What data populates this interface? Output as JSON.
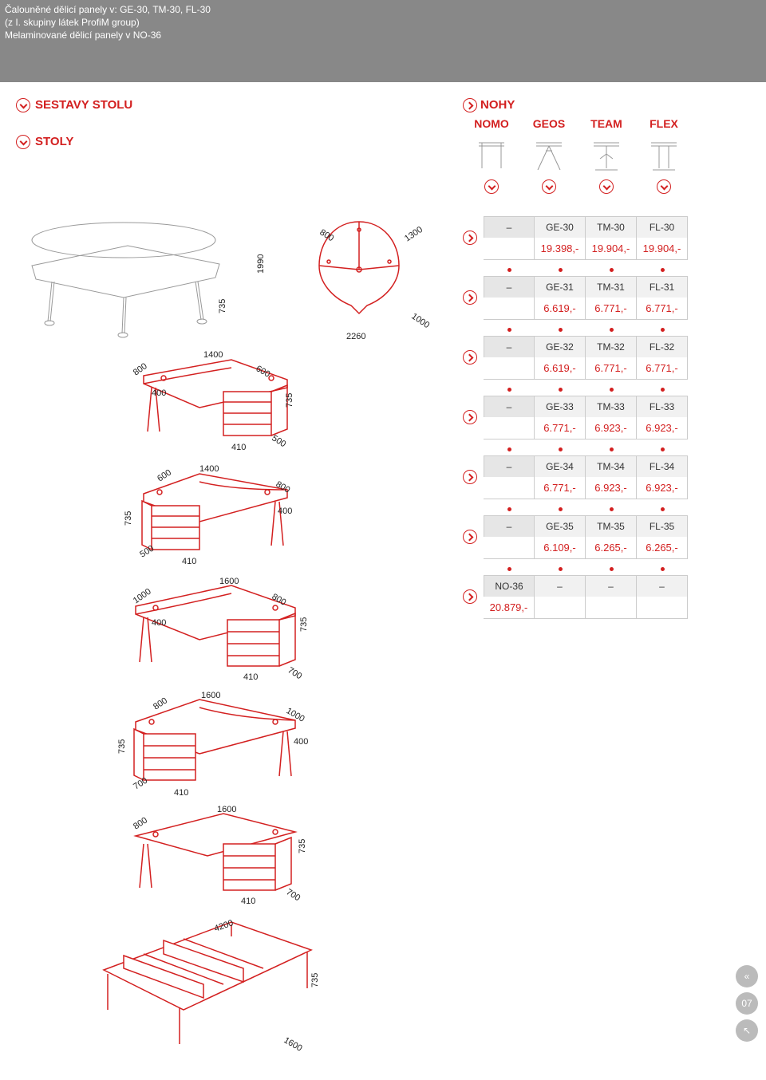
{
  "header": {
    "line1": "Čalouněné dělicí panely v: GE-30, TM-30, FL-30",
    "line2": "(z I. skupiny látek ProfiM group)",
    "line3": "Melaminované dělicí panely v NO-36"
  },
  "sections": {
    "sestavy": "SESTAVY STOLU",
    "stoly": "STOLY",
    "nohy": "NOHY"
  },
  "nohy_cols": [
    "NOMO",
    "GEOS",
    "TEAM",
    "FLEX"
  ],
  "colors": {
    "accent": "#d32020",
    "grey": "#888888",
    "line": "#cccccc"
  },
  "page_number": "07",
  "diagrams": [
    {
      "dims": {
        "w1": "2260",
        "h1": "1990",
        "h2": "735",
        "d1": "1300",
        "d2": "1000",
        "d3": "800"
      }
    },
    {
      "dims": {
        "w": "1400",
        "h": "735",
        "d": "800",
        "d2": "600",
        "d3": "400",
        "d4": "500",
        "cab": "410"
      }
    },
    {
      "dims": {
        "w": "1400",
        "h": "735",
        "d": "600",
        "d2": "800",
        "d3": "400",
        "d4": "500",
        "cab": "410"
      }
    },
    {
      "dims": {
        "w": "1600",
        "h": "735",
        "d": "1000",
        "d2": "800",
        "d3": "400",
        "d4": "700",
        "cab": "410"
      }
    },
    {
      "dims": {
        "w": "1600",
        "h": "735",
        "d": "800",
        "d2": "1000",
        "d3": "400",
        "d4": "700",
        "cab": "410"
      }
    },
    {
      "dims": {
        "w": "1600",
        "h": "735",
        "d": "800",
        "d4": "700",
        "cab": "410"
      }
    },
    {
      "dims": {
        "w": "4200",
        "h": "735",
        "d": "1600"
      }
    }
  ],
  "products": [
    {
      "codes": [
        "–",
        "GE-30",
        "TM-30",
        "FL-30"
      ],
      "prices": [
        "",
        "19.398,-",
        "19.904,-",
        "19.904,-"
      ]
    },
    {
      "codes": [
        "–",
        "GE-31",
        "TM-31",
        "FL-31"
      ],
      "prices": [
        "",
        "6.619,-",
        "6.771,-",
        "6.771,-"
      ]
    },
    {
      "codes": [
        "–",
        "GE-32",
        "TM-32",
        "FL-32"
      ],
      "prices": [
        "",
        "6.619,-",
        "6.771,-",
        "6.771,-"
      ]
    },
    {
      "codes": [
        "–",
        "GE-33",
        "TM-33",
        "FL-33"
      ],
      "prices": [
        "",
        "6.771,-",
        "6.923,-",
        "6.923,-"
      ]
    },
    {
      "codes": [
        "–",
        "GE-34",
        "TM-34",
        "FL-34"
      ],
      "prices": [
        "",
        "6.771,-",
        "6.923,-",
        "6.923,-"
      ]
    },
    {
      "codes": [
        "–",
        "GE-35",
        "TM-35",
        "FL-35"
      ],
      "prices": [
        "",
        "6.109,-",
        "6.265,-",
        "6.265,-"
      ]
    },
    {
      "codes": [
        "NO-36",
        "–",
        "–",
        "–"
      ],
      "prices": [
        "20.879,-",
        "",
        "",
        ""
      ]
    }
  ]
}
